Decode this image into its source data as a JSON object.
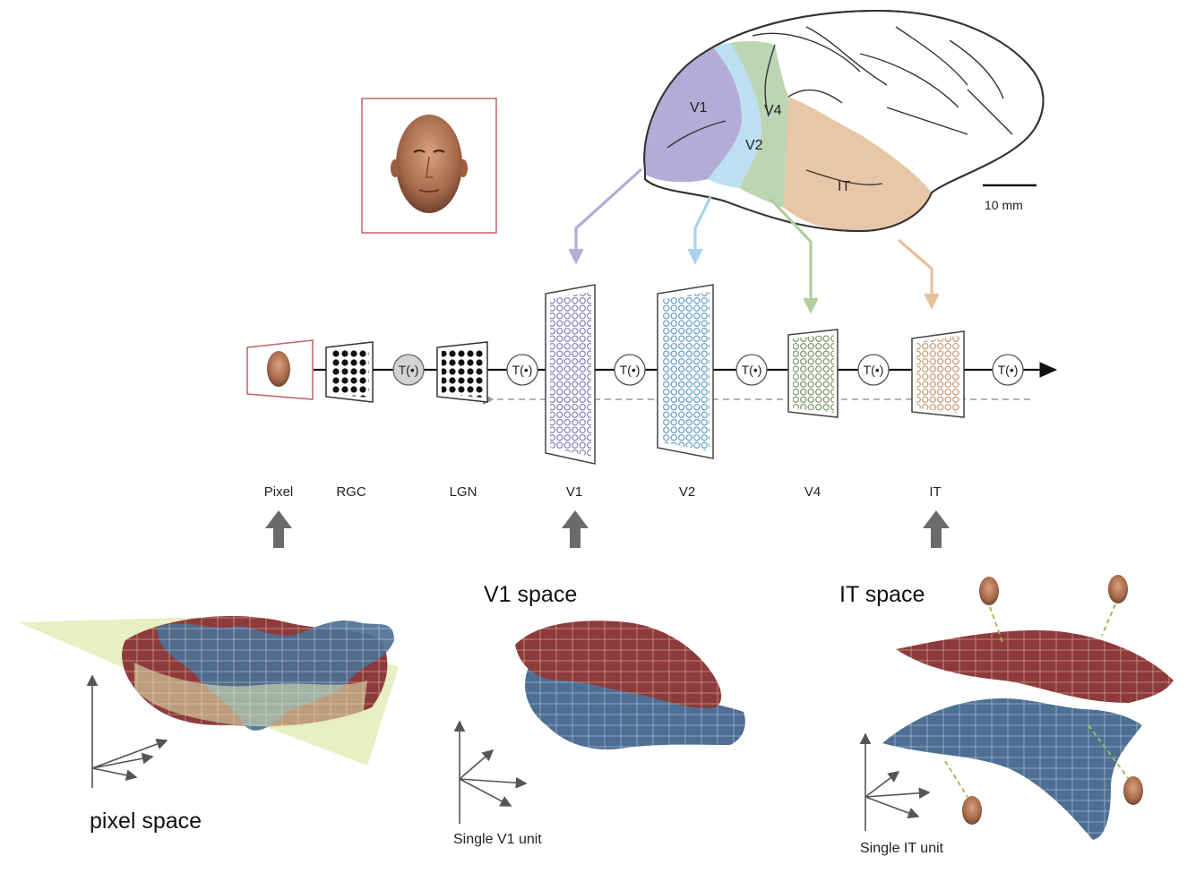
{
  "brain": {
    "areas": [
      {
        "id": "v1",
        "label": "V1",
        "color": "#b3acd6"
      },
      {
        "id": "v2",
        "label": "V2",
        "color": "#bcdff2"
      },
      {
        "id": "v4",
        "label": "V4",
        "color": "#bcd6b4"
      },
      {
        "id": "it",
        "label": "IT",
        "color": "#e7c7a6"
      }
    ],
    "scale_bar_label": "10 mm"
  },
  "pipeline": {
    "transform_label": "T(•)",
    "stage_labels": [
      "Pixel",
      "RGC",
      "LGN",
      "V1",
      "V2",
      "V4",
      "IT"
    ]
  },
  "spaces": {
    "pixel": {
      "title": "pixel space"
    },
    "v1": {
      "title": "V1 space",
      "axis_label": "Single V1 unit"
    },
    "it": {
      "title": "IT space",
      "axis_label": "Single IT unit"
    }
  },
  "colors": {
    "manifold_red": "#8e3a3a",
    "manifold_blue": "#4d6f93",
    "plane": "#e4ecb8",
    "frame_red": "#c0646a",
    "grey_arrow": "#6b6b6b"
  }
}
